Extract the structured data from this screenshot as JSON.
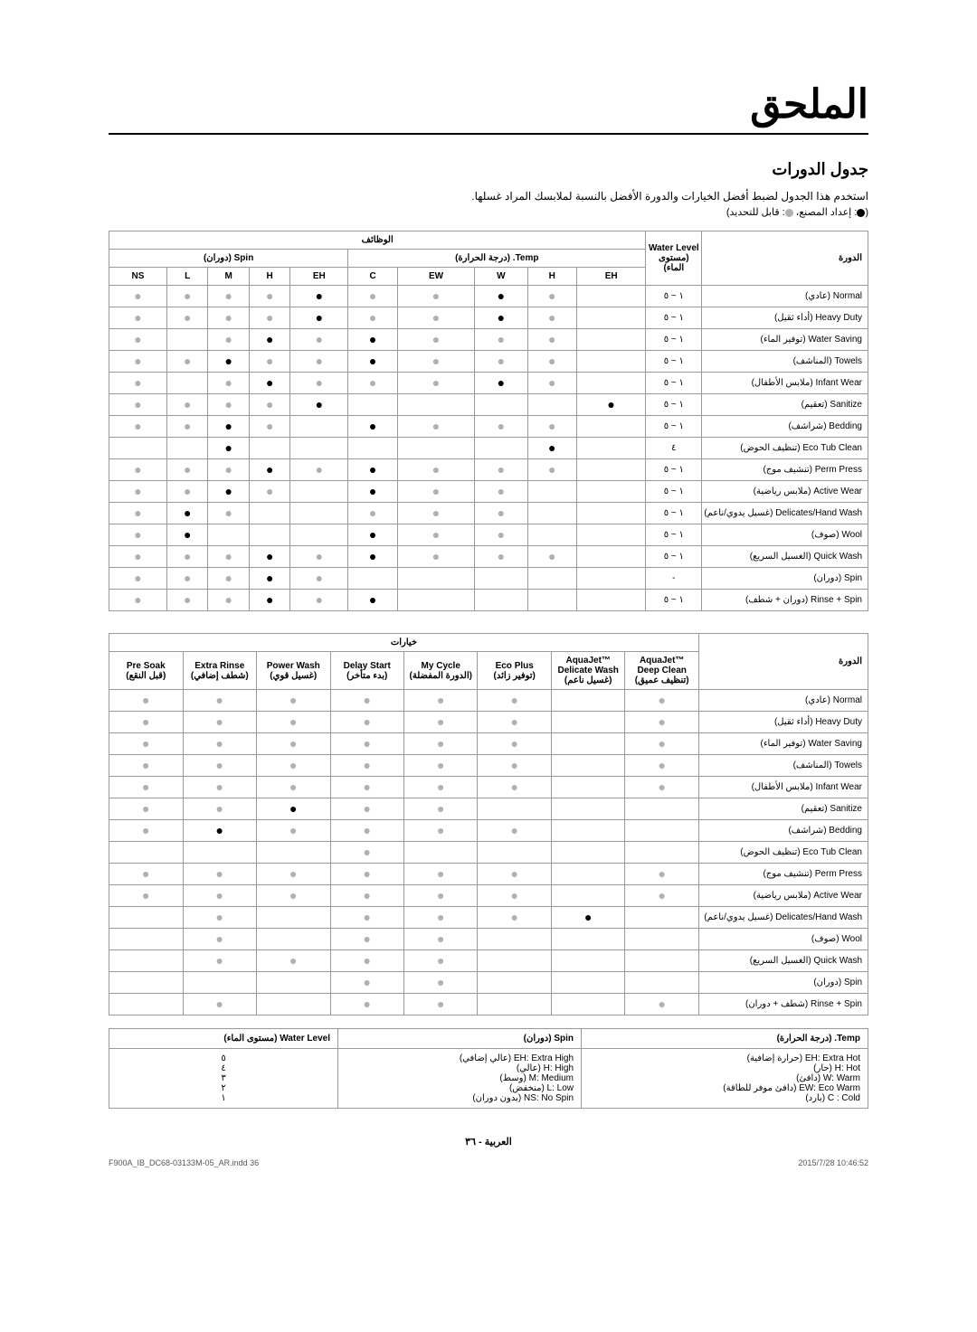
{
  "title": "الملحق",
  "section": "جدول الدورات",
  "intro": "استخدم هذا الجدول لضبط أفضل الخيارات والدورة الأفضل بالنسبة لملابسك المراد غسلها.",
  "legend": "(●: إعداد المصنع، ◐: قابل للتحديد)",
  "t1": {
    "hdr_cycle": "الدورة",
    "hdr_wl": "Water Level\n(مستوى الماء)",
    "hdr_func": "الوظائف",
    "hdr_temp": "Temp. (درجة الحرارة)",
    "hdr_spin": "Spin (دوران)",
    "temp_cols": [
      "EH",
      "H",
      "W",
      "EW",
      "C"
    ],
    "spin_cols": [
      "EH",
      "H",
      "M",
      "L",
      "NS"
    ],
    "rows": [
      {
        "c": "Normal (عادي)",
        "wl": "١ ~ ٥",
        "t": [
          "",
          "s",
          "f",
          "s",
          "s"
        ],
        "sp": [
          "f",
          "s",
          "s",
          "s",
          "s"
        ]
      },
      {
        "c": "Heavy Duty (أداء ثقيل)",
        "wl": "١ ~ ٥",
        "t": [
          "",
          "s",
          "f",
          "s",
          "s"
        ],
        "sp": [
          "f",
          "s",
          "s",
          "s",
          "s"
        ]
      },
      {
        "c": "Water Saving (توفير الماء)",
        "wl": "١ ~ ٥",
        "t": [
          "",
          "s",
          "s",
          "s",
          "f"
        ],
        "sp": [
          "s",
          "f",
          "s",
          "",
          "s"
        ]
      },
      {
        "c": "Towels (المناشف)",
        "wl": "١ ~ ٥",
        "t": [
          "",
          "s",
          "s",
          "s",
          "f"
        ],
        "sp": [
          "s",
          "s",
          "f",
          "s",
          "s"
        ]
      },
      {
        "c": "Infant Wear (ملابس الأطفال)",
        "wl": "١ ~ ٥",
        "t": [
          "",
          "s",
          "f",
          "s",
          "s"
        ],
        "sp": [
          "s",
          "f",
          "s",
          "",
          "s"
        ]
      },
      {
        "c": "Sanitize (تعقيم)",
        "wl": "١ ~ ٥",
        "t": [
          "f",
          "",
          "",
          "",
          ""
        ],
        "sp": [
          "f",
          "s",
          "s",
          "s",
          "s"
        ]
      },
      {
        "c": "Bedding (شراشف)",
        "wl": "١ ~ ٥",
        "t": [
          "",
          "s",
          "s",
          "s",
          "f"
        ],
        "sp": [
          "",
          "s",
          "f",
          "s",
          "s"
        ]
      },
      {
        "c": "Eco Tub Clean (تنظيف الحوض)",
        "wl": "٤",
        "t": [
          "",
          "f",
          "",
          "",
          ""
        ],
        "sp": [
          "",
          "",
          "f",
          "",
          ""
        ]
      },
      {
        "c": "Perm Press (تنشيف موج)",
        "wl": "١ ~ ٥",
        "t": [
          "",
          "s",
          "s",
          "s",
          "f"
        ],
        "sp": [
          "s",
          "f",
          "s",
          "s",
          "s"
        ]
      },
      {
        "c": "Active Wear (ملابس رياضية)",
        "wl": "١ ~ ٥",
        "t": [
          "",
          "",
          "s",
          "s",
          "f"
        ],
        "sp": [
          "",
          "s",
          "f",
          "s",
          "s"
        ]
      },
      {
        "c": "Delicates/Hand Wash (غسيل يدوي/ناعم)",
        "wl": "١ ~ ٥",
        "t": [
          "",
          "",
          "s",
          "s",
          "s"
        ],
        "sp": [
          "",
          "",
          "s",
          "f",
          "s"
        ]
      },
      {
        "c": "Wool (صوف)",
        "wl": "١ ~ ٥",
        "t": [
          "",
          "",
          "s",
          "s",
          "f"
        ],
        "sp": [
          "",
          "",
          "",
          "f",
          "s"
        ]
      },
      {
        "c": "Quick Wash (الغسيل السريع)",
        "wl": "١ ~ ٥",
        "t": [
          "",
          "s",
          "s",
          "s",
          "f"
        ],
        "sp": [
          "s",
          "f",
          "s",
          "s",
          "s"
        ]
      },
      {
        "c": "Spin (دوران)",
        "wl": "-",
        "t": [
          "",
          "",
          "",
          "",
          ""
        ],
        "sp": [
          "s",
          "f",
          "s",
          "s",
          "s"
        ]
      },
      {
        "c": "Rinse + Spin (دوران + شطف)",
        "wl": "١ ~ ٥",
        "t": [
          "",
          "",
          "",
          "",
          "f"
        ],
        "sp": [
          "s",
          "f",
          "s",
          "s",
          "s"
        ]
      }
    ]
  },
  "t2": {
    "hdr_cycle": "الدورة",
    "hdr_opt": "خيارات",
    "opt_cols": [
      "™AquaJet\nDeep Clean\n(تنظيف عميق)",
      "™AquaJet\nDelicate Wash\n(غسيل ناعم)",
      "Eco Plus\n(توفير زائد)",
      "My Cycle\n(الدورة المفضلة)",
      "Delay Start\n(بدء متأخر)",
      "Power Wash\n(غسيل قوي)",
      "Extra Rinse\n(شطف إضافي)",
      "Pre Soak\n(قبل النقع)"
    ],
    "rows": [
      {
        "c": "Normal (عادي)",
        "o": [
          "s",
          "",
          "s",
          "s",
          "s",
          "s",
          "s",
          "s"
        ]
      },
      {
        "c": "Heavy Duty (أداء ثقيل)",
        "o": [
          "s",
          "",
          "s",
          "s",
          "s",
          "s",
          "s",
          "s"
        ]
      },
      {
        "c": "Water Saving (توفير الماء)",
        "o": [
          "s",
          "",
          "s",
          "s",
          "s",
          "s",
          "s",
          "s"
        ]
      },
      {
        "c": "Towels (المناشف)",
        "o": [
          "s",
          "",
          "s",
          "s",
          "s",
          "s",
          "s",
          "s"
        ]
      },
      {
        "c": "Infant Wear (ملابس الأطفال)",
        "o": [
          "s",
          "",
          "s",
          "s",
          "s",
          "s",
          "s",
          "s"
        ]
      },
      {
        "c": "Sanitize (تعقيم)",
        "o": [
          "",
          "",
          "",
          "s",
          "s",
          "f",
          "s",
          "s"
        ]
      },
      {
        "c": "Bedding (شراشف)",
        "o": [
          "",
          "",
          "s",
          "s",
          "s",
          "s",
          "f",
          "s"
        ]
      },
      {
        "c": "Eco Tub Clean (تنظيف الحوض)",
        "o": [
          "",
          "",
          "",
          "",
          "s",
          "",
          "",
          ""
        ]
      },
      {
        "c": "Perm Press (تنشيف موج)",
        "o": [
          "s",
          "",
          "s",
          "s",
          "s",
          "s",
          "s",
          "s"
        ]
      },
      {
        "c": "Active Wear (ملابس رياضية)",
        "o": [
          "s",
          "",
          "s",
          "s",
          "s",
          "s",
          "s",
          "s"
        ]
      },
      {
        "c": "Delicates/Hand Wash (غسيل يدوي/ناعم)",
        "o": [
          "",
          "f",
          "s",
          "s",
          "s",
          "",
          "s",
          ""
        ]
      },
      {
        "c": "Wool (صوف)",
        "o": [
          "",
          "",
          "",
          "s",
          "s",
          "",
          "s",
          ""
        ]
      },
      {
        "c": "Quick Wash (الغسيل السريع)",
        "o": [
          "",
          "",
          "",
          "s",
          "s",
          "s",
          "s",
          ""
        ]
      },
      {
        "c": "Spin (دوران)",
        "o": [
          "",
          "",
          "",
          "s",
          "s",
          "",
          "",
          ""
        ]
      },
      {
        "c": "Rinse + Spin (شطف + دوران)",
        "o": [
          "s",
          "",
          "",
          "s",
          "s",
          "",
          "s",
          ""
        ]
      }
    ]
  },
  "legendTbl": {
    "hdrs": [
      "Temp. (درجة الحرارة)",
      "Spin (دوران)",
      "Water Level (مستوى الماء)"
    ],
    "temp": [
      "EH: Extra Hot (حرارة إضافية)",
      "H: Hot (حار)",
      "W: Warm (دافئ)",
      "EW: Eco Warm (دافئ موفر للطاقة)",
      "C : Cold (بارد)"
    ],
    "spin": [
      "EH: Extra High (عالي إضافي)",
      "H: High (عالي)",
      "M: Medium (وسط)",
      "L: Low (منخفض)",
      "NS: No Spin (بدون دوران)"
    ],
    "wl": [
      "٥",
      "٤",
      "٣",
      "٢",
      "١"
    ]
  },
  "footer": "العربية - ٣٦",
  "meta_l": "F900A_IB_DC68-03133M-05_AR.indd   36",
  "meta_r": "2015/7/28   10:46:52"
}
